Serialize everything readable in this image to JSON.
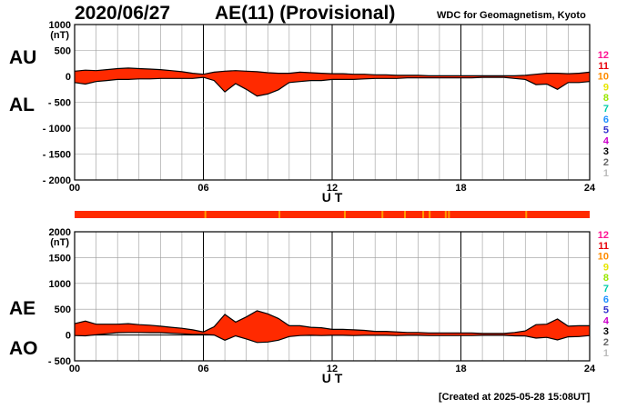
{
  "header": {
    "date": "2020/06/27",
    "title": "AE(11) (Provisional)",
    "org": "WDC for Geomagnetism, Kyoto"
  },
  "footer": {
    "created": "[Created at 2025-05-28 15:08UT]"
  },
  "labels": {
    "au": "AU",
    "al": "AL",
    "ae": "AE",
    "ao": "AO"
  },
  "legend": {
    "numbers": [
      "12",
      "11",
      "10",
      "9",
      "8",
      "7",
      "6",
      "5",
      "4",
      "3",
      "2",
      "1"
    ],
    "colors": [
      "#ff1493",
      "#e8000b",
      "#ff8c00",
      "#e6e600",
      "#99e600",
      "#00ccaa",
      "#1e90ff",
      "#3333cc",
      "#cc00cc",
      "#000000",
      "#666666",
      "#bbbbbb"
    ]
  },
  "chart_data": [
    {
      "type": "area",
      "name": "AU/AL",
      "x_unit": "UT hours",
      "ylabel_unit": "(nT)",
      "xlabel": "U T",
      "xlim": [
        0,
        24
      ],
      "ylim": [
        -2000,
        1000
      ],
      "x_ticks": [
        0,
        6,
        12,
        18,
        24
      ],
      "x_tick_labels": [
        "00",
        "06",
        "12",
        "18",
        "24"
      ],
      "y_ticks": [
        1000,
        500,
        0,
        -500,
        -1000,
        -1500,
        -2000
      ],
      "y_tick_labels": [
        "1000",
        "500",
        "0",
        "- 500",
        "- 1000",
        "- 1500",
        "- 2000"
      ],
      "fill_color": "#ff2a00",
      "grid": true,
      "x": [
        0,
        0.5,
        1,
        1.5,
        2,
        2.5,
        3,
        3.5,
        4,
        4.5,
        5,
        5.5,
        6,
        6.5,
        7,
        7.5,
        8,
        8.5,
        9,
        9.5,
        10,
        10.5,
        11,
        11.5,
        12,
        12.5,
        13,
        13.5,
        14,
        14.5,
        15,
        15.5,
        16,
        16.5,
        17,
        17.5,
        18,
        18.5,
        19,
        19.5,
        20,
        20.5,
        21,
        21.5,
        22,
        22.5,
        23,
        23.5,
        24
      ],
      "series": [
        {
          "name": "AU",
          "values": [
            100,
            120,
            110,
            130,
            150,
            160,
            150,
            140,
            130,
            110,
            90,
            60,
            40,
            80,
            100,
            110,
            100,
            90,
            70,
            60,
            60,
            80,
            70,
            60,
            50,
            50,
            40,
            40,
            30,
            30,
            20,
            20,
            20,
            10,
            10,
            10,
            10,
            10,
            10,
            10,
            10,
            10,
            20,
            40,
            60,
            60,
            50,
            60,
            80
          ]
        },
        {
          "name": "AL",
          "values": [
            -120,
            -150,
            -100,
            -80,
            -60,
            -60,
            -50,
            -50,
            -40,
            -40,
            -40,
            -40,
            -20,
            -80,
            -300,
            -140,
            -250,
            -380,
            -340,
            -260,
            -120,
            -100,
            -80,
            -80,
            -60,
            -60,
            -60,
            -50,
            -40,
            -40,
            -40,
            -30,
            -30,
            -30,
            -30,
            -30,
            -30,
            -30,
            -20,
            -20,
            -20,
            -40,
            -60,
            -160,
            -150,
            -250,
            -120,
            -120,
            -100
          ]
        }
      ]
    },
    {
      "type": "area",
      "name": "AE/AO",
      "x_unit": "UT hours",
      "ylabel_unit": "(nT)",
      "xlabel": "U T",
      "xlim": [
        0,
        24
      ],
      "ylim": [
        -500,
        2000
      ],
      "x_ticks": [
        0,
        6,
        12,
        18,
        24
      ],
      "x_tick_labels": [
        "00",
        "06",
        "12",
        "18",
        "24"
      ],
      "y_ticks": [
        2000,
        1500,
        1000,
        500,
        0,
        -500
      ],
      "y_tick_labels": [
        "2000",
        "1500",
        "1000",
        "500",
        "0",
        "- 500"
      ],
      "fill_color": "#ff2a00",
      "grid": true,
      "x": [
        0,
        0.5,
        1,
        1.5,
        2,
        2.5,
        3,
        3.5,
        4,
        4.5,
        5,
        5.5,
        6,
        6.5,
        7,
        7.5,
        8,
        8.5,
        9,
        9.5,
        10,
        10.5,
        11,
        11.5,
        12,
        12.5,
        13,
        13.5,
        14,
        14.5,
        15,
        15.5,
        16,
        16.5,
        17,
        17.5,
        18,
        18.5,
        19,
        19.5,
        20,
        20.5,
        21,
        21.5,
        22,
        22.5,
        23,
        23.5,
        24
      ],
      "series": [
        {
          "name": "AE",
          "values": [
            220,
            270,
            210,
            210,
            210,
            220,
            200,
            190,
            170,
            150,
            130,
            100,
            60,
            160,
            400,
            250,
            350,
            470,
            410,
            320,
            180,
            180,
            150,
            140,
            110,
            110,
            100,
            90,
            70,
            70,
            60,
            50,
            50,
            40,
            40,
            40,
            40,
            40,
            30,
            30,
            30,
            50,
            80,
            200,
            210,
            310,
            170,
            180,
            180
          ]
        },
        {
          "name": "AO",
          "values": [
            -10,
            -15,
            5,
            25,
            45,
            50,
            50,
            45,
            45,
            35,
            25,
            10,
            10,
            0,
            -100,
            -15,
            -75,
            -145,
            -135,
            -100,
            -30,
            -10,
            -5,
            -10,
            -5,
            -5,
            -10,
            -5,
            -5,
            -5,
            -10,
            -5,
            -5,
            -10,
            -10,
            -10,
            -10,
            -10,
            -5,
            -5,
            -5,
            -15,
            -20,
            -60,
            -45,
            -95,
            -35,
            -30,
            -10
          ]
        }
      ]
    }
  ]
}
